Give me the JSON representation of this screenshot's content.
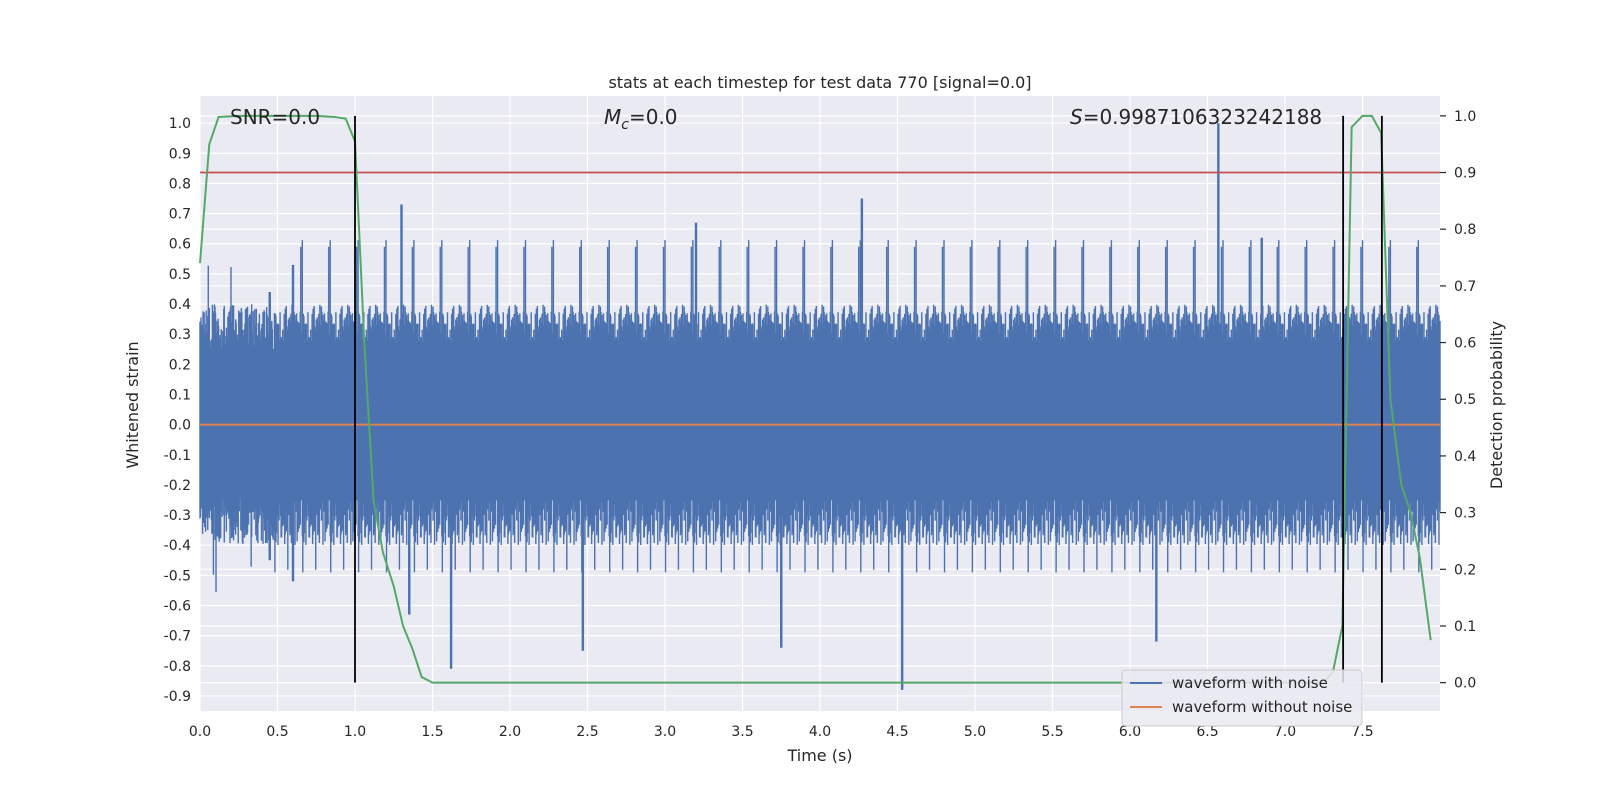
{
  "chart_data": {
    "type": "line",
    "title": "stats at each timestep for test data 770 [signal=0.0]",
    "xlabel": "Time (s)",
    "ylabel": "Whitened strain",
    "y2label": "Detection probability",
    "xlim": [
      0.0,
      8.0
    ],
    "ylim": [
      -0.95,
      1.09
    ],
    "y2lim": [
      -0.05,
      1.035
    ],
    "x_ticks": [
      "0.0",
      "0.5",
      "1.0",
      "1.5",
      "2.0",
      "2.5",
      "3.0",
      "3.5",
      "4.0",
      "4.5",
      "5.0",
      "5.5",
      "6.0",
      "6.5",
      "7.0",
      "7.5"
    ],
    "y_ticks": [
      "1.0",
      "0.9",
      "0.8",
      "0.7",
      "0.6",
      "0.5",
      "0.4",
      "0.3",
      "0.2",
      "0.1",
      "0.0",
      "-0.1",
      "-0.2",
      "-0.3",
      "-0.4",
      "-0.5",
      "-0.6",
      "-0.7",
      "-0.8",
      "-0.9"
    ],
    "y2_ticks": [
      "1.0",
      "0.9",
      "0.8",
      "0.7",
      "0.6",
      "0.5",
      "0.4",
      "0.3",
      "0.2",
      "0.1",
      "0.0"
    ],
    "annotations": {
      "snr": "SNR=0.0",
      "mc_symbol": "M",
      "mc_sub": "c",
      "mc_value": "=0.0",
      "s_symbol": "S",
      "s_value": "=0.9987106323242188"
    },
    "threshold": 0.9,
    "vlines": [
      1.0,
      7.375,
      7.625
    ],
    "noise_envelope": {
      "upper_typical": 0.4,
      "lower_typical": -0.4,
      "peaks": [
        {
          "x": 0.45,
          "y": 0.44
        },
        {
          "x": 0.45,
          "y": -0.45
        },
        {
          "x": 0.6,
          "y": 0.53
        },
        {
          "x": 0.6,
          "y": -0.52
        },
        {
          "x": 1.3,
          "y": 0.73
        },
        {
          "x": 1.35,
          "y": -0.63
        },
        {
          "x": 1.62,
          "y": -0.81
        },
        {
          "x": 2.47,
          "y": -0.75
        },
        {
          "x": 3.2,
          "y": 0.67
        },
        {
          "x": 3.75,
          "y": -0.74
        },
        {
          "x": 4.27,
          "y": 0.75
        },
        {
          "x": 4.53,
          "y": -0.88
        },
        {
          "x": 6.17,
          "y": -0.72
        },
        {
          "x": 6.57,
          "y": 1.0
        },
        {
          "x": 6.85,
          "y": 0.62
        }
      ]
    },
    "series": [
      {
        "name": "waveform with noise",
        "color": "#4c72b0",
        "axis": "left",
        "kind": "noise"
      },
      {
        "name": "waveform without noise",
        "color": "#dd8452",
        "axis": "left",
        "x": [
          0.0,
          8.0
        ],
        "y": [
          0.0,
          0.0
        ]
      },
      {
        "name": "detection probability",
        "color": "#55a868",
        "axis": "right",
        "x": [
          0.0,
          0.06,
          0.12,
          0.25,
          0.5,
          0.75,
          0.87,
          0.94,
          1.0,
          1.06,
          1.12,
          1.18,
          1.25,
          1.31,
          1.37,
          1.43,
          1.5,
          5.0,
          7.25,
          7.31,
          7.37,
          7.43,
          7.5,
          7.56,
          7.62,
          7.68,
          7.75,
          7.81,
          7.87,
          7.94
        ],
        "y": [
          0.74,
          0.95,
          0.998,
          1.0,
          1.0,
          1.0,
          0.998,
          0.995,
          0.955,
          0.6,
          0.32,
          0.23,
          0.17,
          0.1,
          0.06,
          0.01,
          0.0,
          0.0,
          0.0,
          0.02,
          0.1,
          0.98,
          1.0,
          1.0,
          0.97,
          0.5,
          0.35,
          0.3,
          0.22,
          0.075
        ]
      }
    ],
    "legend": {
      "position": "lower right",
      "entries": [
        "waveform with noise",
        "waveform without noise"
      ]
    }
  }
}
